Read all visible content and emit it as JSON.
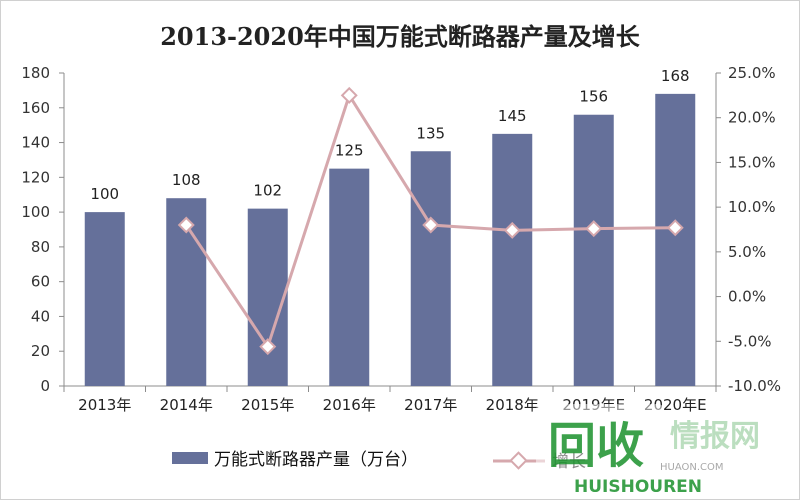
{
  "chart_data": {
    "type": "bar",
    "title": "2013-2020年中国万能式断路器产量及增长",
    "categories": [
      "2013年",
      "2014年",
      "2015年",
      "2016年",
      "2017年",
      "2018年",
      "2019年E",
      "2020年E"
    ],
    "series": [
      {
        "name": "万能式断路器产量（万台）",
        "type": "bar",
        "axis": "left",
        "values": [
          100,
          108,
          102,
          125,
          135,
          145,
          156,
          168
        ],
        "data_labels": [
          "100",
          "108",
          "102",
          "125",
          "135",
          "145",
          "156",
          "168"
        ],
        "color": "#65709a"
      },
      {
        "name": "增长",
        "type": "line",
        "axis": "right",
        "values": [
          null,
          8.0,
          -5.6,
          22.5,
          8.0,
          7.4,
          7.6,
          7.7
        ],
        "color": "#d6a8ad"
      }
    ],
    "y_left": {
      "ylim": [
        0,
        180
      ],
      "ticks": [
        "0",
        "20",
        "40",
        "60",
        "80",
        "100",
        "120",
        "140",
        "160",
        "180"
      ]
    },
    "y_right": {
      "ylim": [
        -10,
        25
      ],
      "ticks": [
        "-10.0%",
        "-5.0%",
        "0.0%",
        "5.0%",
        "10.0%",
        "15.0%",
        "20.0%",
        "25.0%"
      ]
    },
    "xlabel": "",
    "ylabel": "",
    "grid": false,
    "legend": "bottom"
  },
  "watermark": {
    "mark_text": "回收",
    "site_text": "情报网",
    "domain_text": "HUISHOUREN",
    "sub_text": "HUAON.COM",
    "color": "#2e9a3e"
  },
  "colors": {
    "bar": "#65709a",
    "line": "#d6a8ad",
    "axis": "#8c8c8c"
  }
}
